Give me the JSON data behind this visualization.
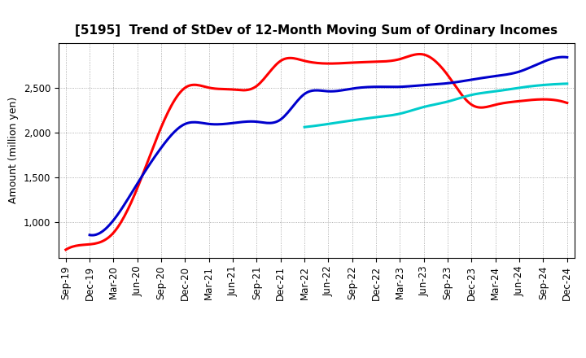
{
  "title": "[5195]  Trend of StDev of 12-Month Moving Sum of Ordinary Incomes",
  "ylabel": "Amount (million yen)",
  "x_labels": [
    "Sep-19",
    "Dec-19",
    "Mar-20",
    "Jun-20",
    "Sep-20",
    "Dec-20",
    "Mar-21",
    "Jun-21",
    "Sep-21",
    "Dec-21",
    "Mar-22",
    "Jun-22",
    "Sep-22",
    "Dec-22",
    "Mar-23",
    "Jun-23",
    "Sep-23",
    "Dec-23",
    "Mar-24",
    "Jun-24",
    "Sep-24",
    "Dec-24"
  ],
  "series": {
    "3 Years": {
      "color": "#ff0000",
      "data_x": [
        0,
        1,
        2,
        3,
        4,
        5,
        6,
        7,
        8,
        9,
        10,
        11,
        12,
        13,
        14,
        15,
        16,
        17,
        18,
        19,
        20,
        21
      ],
      "data_y": [
        690,
        750,
        880,
        1380,
        2060,
        2500,
        2500,
        2480,
        2520,
        2800,
        2800,
        2770,
        2780,
        2790,
        2820,
        2870,
        2640,
        2310,
        2310,
        2350,
        2370,
        2330
      ]
    },
    "5 Years": {
      "color": "#0000cc",
      "data_x": [
        1,
        2,
        3,
        4,
        5,
        6,
        7,
        8,
        9,
        10,
        11,
        12,
        13,
        14,
        15,
        16,
        17,
        18,
        19,
        20,
        21
      ],
      "data_y": [
        855,
        1020,
        1430,
        1830,
        2095,
        2095,
        2105,
        2120,
        2145,
        2430,
        2460,
        2490,
        2510,
        2510,
        2530,
        2550,
        2590,
        2630,
        2680,
        2790,
        2840
      ]
    },
    "7 Years": {
      "color": "#00cccc",
      "data_x": [
        10,
        11,
        12,
        13,
        14,
        15,
        16,
        17,
        18,
        19,
        20,
        21
      ],
      "data_y": [
        2060,
        2095,
        2135,
        2170,
        2210,
        2285,
        2345,
        2420,
        2460,
        2500,
        2530,
        2545
      ]
    },
    "10 Years": {
      "color": "#008000",
      "data_x": [],
      "data_y": []
    }
  },
  "ylim": [
    600,
    3000
  ],
  "yticks": [
    1000,
    1500,
    2000,
    2500
  ],
  "background_color": "#ffffff",
  "grid_color": "#999999",
  "title_fontsize": 11,
  "axis_fontsize": 8.5,
  "ylabel_fontsize": 9
}
